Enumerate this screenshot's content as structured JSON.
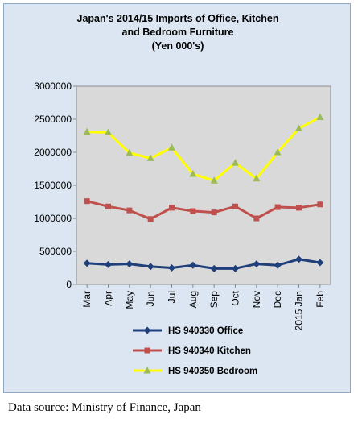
{
  "chart_data": {
    "type": "line",
    "title": "Japan's 2014/15  Imports of Office, Kitchen\nand Bedroom Furniture\n(Yen 000's)",
    "categories": [
      "Mar",
      "Apr",
      "May",
      "Jun",
      "Jul",
      "Aug",
      "Sep",
      "Oct",
      "Nov",
      "Dec",
      "2015 Jan",
      "Feb"
    ],
    "y_ticks": [
      "0",
      "500000",
      "1000000",
      "1500000",
      "2000000",
      "2500000",
      "3000000"
    ],
    "ylim": [
      0,
      3000000
    ],
    "grid": false,
    "legend_position": "bottom",
    "series": [
      {
        "name": "HS 940330 Office",
        "color": "#1f3f7a",
        "marker": "diamond",
        "values": [
          320000,
          300000,
          310000,
          270000,
          250000,
          290000,
          240000,
          240000,
          310000,
          290000,
          380000,
          330000
        ]
      },
      {
        "name": "HS 940340 Kitchen",
        "color": "#c0504d",
        "marker": "square",
        "values": [
          1260000,
          1180000,
          1120000,
          990000,
          1160000,
          1110000,
          1090000,
          1180000,
          1000000,
          1170000,
          1160000,
          1210000
        ]
      },
      {
        "name": "HS 940350 Bedroom",
        "color": "#ffff00",
        "marker": "triangle",
        "marker_color": "#9bbb59",
        "values": [
          2310000,
          2300000,
          1990000,
          1910000,
          2070000,
          1670000,
          1570000,
          1840000,
          1600000,
          2000000,
          2360000,
          2530000
        ]
      }
    ]
  },
  "source_note": "Data source: Ministry of Finance, Japan"
}
